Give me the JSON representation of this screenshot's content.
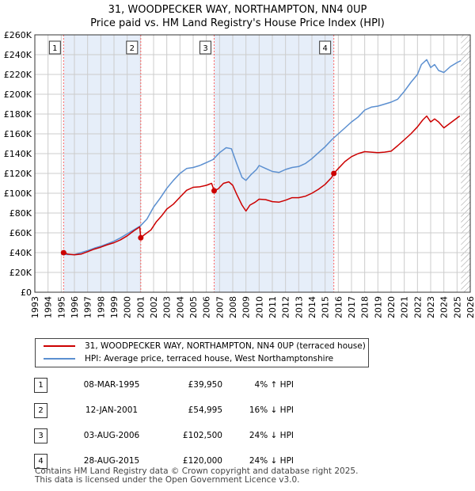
{
  "title_line1": "31, WOODPECKER WAY, NORTHAMPTON, NN4 0UP",
  "title_line2": "Price paid vs. HM Land Registry's House Price Index (HPI)",
  "colors": {
    "price": "#cc0000",
    "hpi": "#5b8fd0",
    "grid": "#cccccc",
    "shade": "#e6eef9",
    "marker_line": "#ff6666"
  },
  "legend": {
    "price_label": "31, WOODPECKER WAY, NORTHAMPTON, NN4 0UP (terraced house)",
    "hpi_label": "HPI: Average price, terraced house, West Northamptonshire"
  },
  "sales": [
    {
      "n": "1",
      "date": "08-MAR-1995",
      "price": "£39,950",
      "hpi": "4% ↑ HPI"
    },
    {
      "n": "2",
      "date": "12-JAN-2001",
      "price": "£54,995",
      "hpi": "16% ↓ HPI"
    },
    {
      "n": "3",
      "date": "03-AUG-2006",
      "price": "£102,500",
      "hpi": "24% ↓ HPI"
    },
    {
      "n": "4",
      "date": "28-AUG-2015",
      "price": "£120,000",
      "hpi": "24% ↓ HPI"
    }
  ],
  "footer_line1": "Contains HM Land Registry data © Crown copyright and database right 2025.",
  "footer_line2": "This data is licensed under the Open Government Licence v3.0.",
  "chart_data": {
    "type": "line",
    "title": "31, WOODPECKER WAY, NORTHAMPTON, NN4 0UP — Price paid vs. HM Land Registry's House Price Index (HPI)",
    "xlim": [
      1993,
      2026
    ],
    "ylim": [
      0,
      260000
    ],
    "yticks": [
      0,
      20000,
      40000,
      60000,
      80000,
      100000,
      120000,
      140000,
      160000,
      180000,
      200000,
      220000,
      240000,
      260000
    ],
    "ytick_labels": [
      "£0",
      "£20K",
      "£40K",
      "£60K",
      "£80K",
      "£100K",
      "£120K",
      "£140K",
      "£160K",
      "£180K",
      "£200K",
      "£220K",
      "£240K",
      "£260K"
    ],
    "xticks": [
      1993,
      1994,
      1995,
      1996,
      1997,
      1998,
      1999,
      2000,
      2001,
      2002,
      2003,
      2004,
      2005,
      2006,
      2007,
      2008,
      2009,
      2010,
      2011,
      2012,
      2013,
      2014,
      2015,
      2016,
      2017,
      2018,
      2019,
      2020,
      2021,
      2022,
      2023,
      2024,
      2025,
      2026
    ],
    "shaded_regions": [
      [
        1995.18,
        2001.03
      ],
      [
        2006.59,
        2015.66
      ]
    ],
    "hatched_region": [
      2025.3,
      2026
    ],
    "sale_markers": [
      {
        "label": "1",
        "x": 1995.18,
        "y": 39950
      },
      {
        "label": "2",
        "x": 2001.03,
        "y": 54995
      },
      {
        "label": "3",
        "x": 2006.59,
        "y": 102500
      },
      {
        "label": "4",
        "x": 2015.66,
        "y": 120000
      }
    ],
    "series": [
      {
        "name": "31, WOODPECKER WAY, NORTHAMPTON, NN4 0UP (terraced house)",
        "x": [
          1995.18,
          1995.5,
          1996,
          1996.5,
          1997,
          1997.5,
          1998,
          1998.5,
          1999,
          1999.5,
          2000,
          2000.5,
          2000.95,
          2001.03,
          2001.3,
          2001.8,
          2002.2,
          2002.6,
          2003,
          2003.5,
          2004,
          2004.5,
          2005,
          2005.5,
          2006,
          2006.4,
          2006.59,
          2006.9,
          2007.3,
          2007.7,
          2008,
          2008.3,
          2008.7,
          2009,
          2009.3,
          2009.7,
          2010,
          2010.5,
          2011,
          2011.5,
          2012,
          2012.5,
          2013,
          2013.5,
          2014,
          2014.5,
          2015,
          2015.5,
          2015.66,
          2016,
          2016.5,
          2017,
          2017.5,
          2018,
          2018.5,
          2019,
          2019.5,
          2020,
          2020.5,
          2021,
          2021.5,
          2022,
          2022.4,
          2022.7,
          2023,
          2023.3,
          2023.6,
          2024,
          2024.4,
          2024.8,
          2025.2
        ],
        "values": [
          39950,
          38500,
          37800,
          38500,
          41000,
          43500,
          45500,
          48000,
          50000,
          53000,
          57000,
          62000,
          66000,
          54995,
          58000,
          63000,
          71000,
          77000,
          84000,
          89000,
          96000,
          103000,
          106000,
          106500,
          108000,
          110000,
          102500,
          104500,
          110000,
          111500,
          108000,
          99000,
          88000,
          82000,
          88000,
          91000,
          94000,
          93500,
          91500,
          91000,
          93000,
          95500,
          95500,
          97000,
          100000,
          104000,
          109000,
          116000,
          120000,
          125000,
          132000,
          137000,
          140000,
          142000,
          141500,
          141000,
          141500,
          142500,
          148000,
          154000,
          160000,
          167000,
          174000,
          178000,
          172000,
          175000,
          172000,
          166000,
          170000,
          174000,
          178000
        ]
      },
      {
        "name": "HPI: Average price, terraced house, West Northamptonshire",
        "x": [
          1995,
          1995.5,
          1996,
          1996.5,
          1997,
          1997.5,
          1998,
          1998.5,
          1999,
          1999.5,
          2000,
          2000.5,
          2001,
          2001.5,
          2002,
          2002.5,
          2003,
          2003.5,
          2004,
          2004.5,
          2005,
          2005.5,
          2006,
          2006.5,
          2007,
          2007.5,
          2007.9,
          2008.3,
          2008.7,
          2009,
          2009.4,
          2009.8,
          2010,
          2010.5,
          2011,
          2011.5,
          2012,
          2012.5,
          2013,
          2013.5,
          2014,
          2014.5,
          2015,
          2015.5,
          2016,
          2016.5,
          2017,
          2017.5,
          2018,
          2018.5,
          2019,
          2019.5,
          2020,
          2020.5,
          2021,
          2021.5,
          2022,
          2022.3,
          2022.7,
          2023,
          2023.3,
          2023.6,
          2024,
          2024.5,
          2025,
          2025.3
        ],
        "values": [
          38500,
          38000,
          38000,
          40000,
          42000,
          44500,
          46500,
          49000,
          51500,
          55000,
          59000,
          63000,
          67000,
          74000,
          86000,
          95000,
          105000,
          113000,
          120000,
          125000,
          126000,
          128000,
          131000,
          134000,
          141000,
          146000,
          145000,
          130000,
          116000,
          113000,
          119000,
          124000,
          128000,
          125000,
          122000,
          121000,
          124000,
          126000,
          127000,
          130000,
          135000,
          141000,
          147000,
          154000,
          160000,
          166000,
          172000,
          177000,
          184000,
          187000,
          188000,
          190000,
          192000,
          195000,
          203000,
          212000,
          220000,
          230000,
          235000,
          227000,
          230000,
          224000,
          222000,
          228000,
          232000,
          234000
        ]
      }
    ]
  }
}
